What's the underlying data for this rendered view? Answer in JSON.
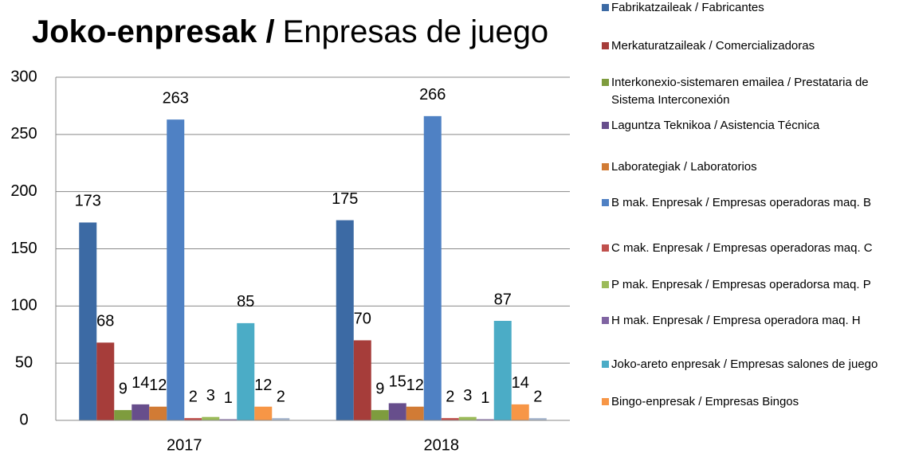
{
  "chart_data": {
    "type": "bar",
    "title_bold": "Joko-enpresak /",
    "title": "Enpresas de juego",
    "categories": [
      "2017",
      "2018"
    ],
    "series": [
      {
        "name": "Fabrikatzaileak / Fabricantes",
        "color": "#3c6aa4",
        "values": [
          173,
          175
        ]
      },
      {
        "name": "Merkaturatzaileak / Comercializadoras",
        "color": "#a63d3a",
        "values": [
          68,
          70
        ]
      },
      {
        "name": "Interkonexio-sistemaren emailea / Prestataria de Sistema Interconexión",
        "color": "#7e9c3e",
        "values": [
          9,
          9
        ]
      },
      {
        "name": "Laguntza Teknikoa / Asistencia Técnica",
        "color": "#674e8c",
        "values": [
          14,
          15
        ]
      },
      {
        "name": "Laborategiak / Laboratorios",
        "color": "#d17b35",
        "values": [
          12,
          12
        ]
      },
      {
        "name": "B mak. Enpresak / Empresas operadoras maq. B",
        "color": "#4f81c4",
        "values": [
          263,
          266
        ]
      },
      {
        "name": "C mak. Enpresak / Empresas operadoras maq. C",
        "color": "#c0504d",
        "values": [
          2,
          2
        ]
      },
      {
        "name": "P mak. Enpresak / Empresas operadorsa maq. P",
        "color": "#9bbb59",
        "values": [
          3,
          3
        ]
      },
      {
        "name": "H mak. Enpresak / Empresa operadora maq. H",
        "color": "#8064a2",
        "values": [
          1,
          1
        ]
      },
      {
        "name": "Joko-areto enpresak / Empresas salones de juego",
        "color": "#4bacc6",
        "values": [
          85,
          87
        ]
      },
      {
        "name": "Bingo-enpresak / Empresas Bingos",
        "color": "#f79646",
        "values": [
          12,
          14
        ]
      },
      {
        "color": "#a9b8d0",
        "values": [
          2,
          2
        ]
      }
    ],
    "ylim": [
      0,
      300
    ],
    "yticks": [
      0,
      50,
      100,
      150,
      200,
      250,
      300
    ],
    "grid": true,
    "legend": "right"
  }
}
